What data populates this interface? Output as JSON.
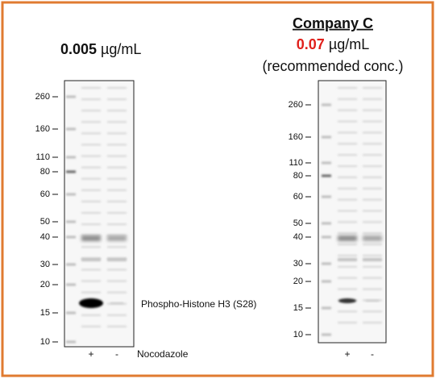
{
  "left_panel": {
    "concentration": "0.005",
    "unit": "µg/mL",
    "markers": [
      "260",
      "160",
      "110",
      "80",
      "60",
      "50",
      "40",
      "30",
      "20",
      "15",
      "10"
    ],
    "lanes": [
      "+",
      "-"
    ],
    "band_label": "Phospho-Histone H3 (S28)",
    "treatment_label": "Nocodazole"
  },
  "right_panel": {
    "company": "Company C",
    "concentration": "0.07",
    "unit": "µg/mL",
    "note": "(recommended conc.)",
    "markers": [
      "260",
      "160",
      "110",
      "80",
      "60",
      "50",
      "40",
      "30",
      "20",
      "15",
      "10"
    ],
    "lanes": [
      "+",
      "-"
    ]
  }
}
